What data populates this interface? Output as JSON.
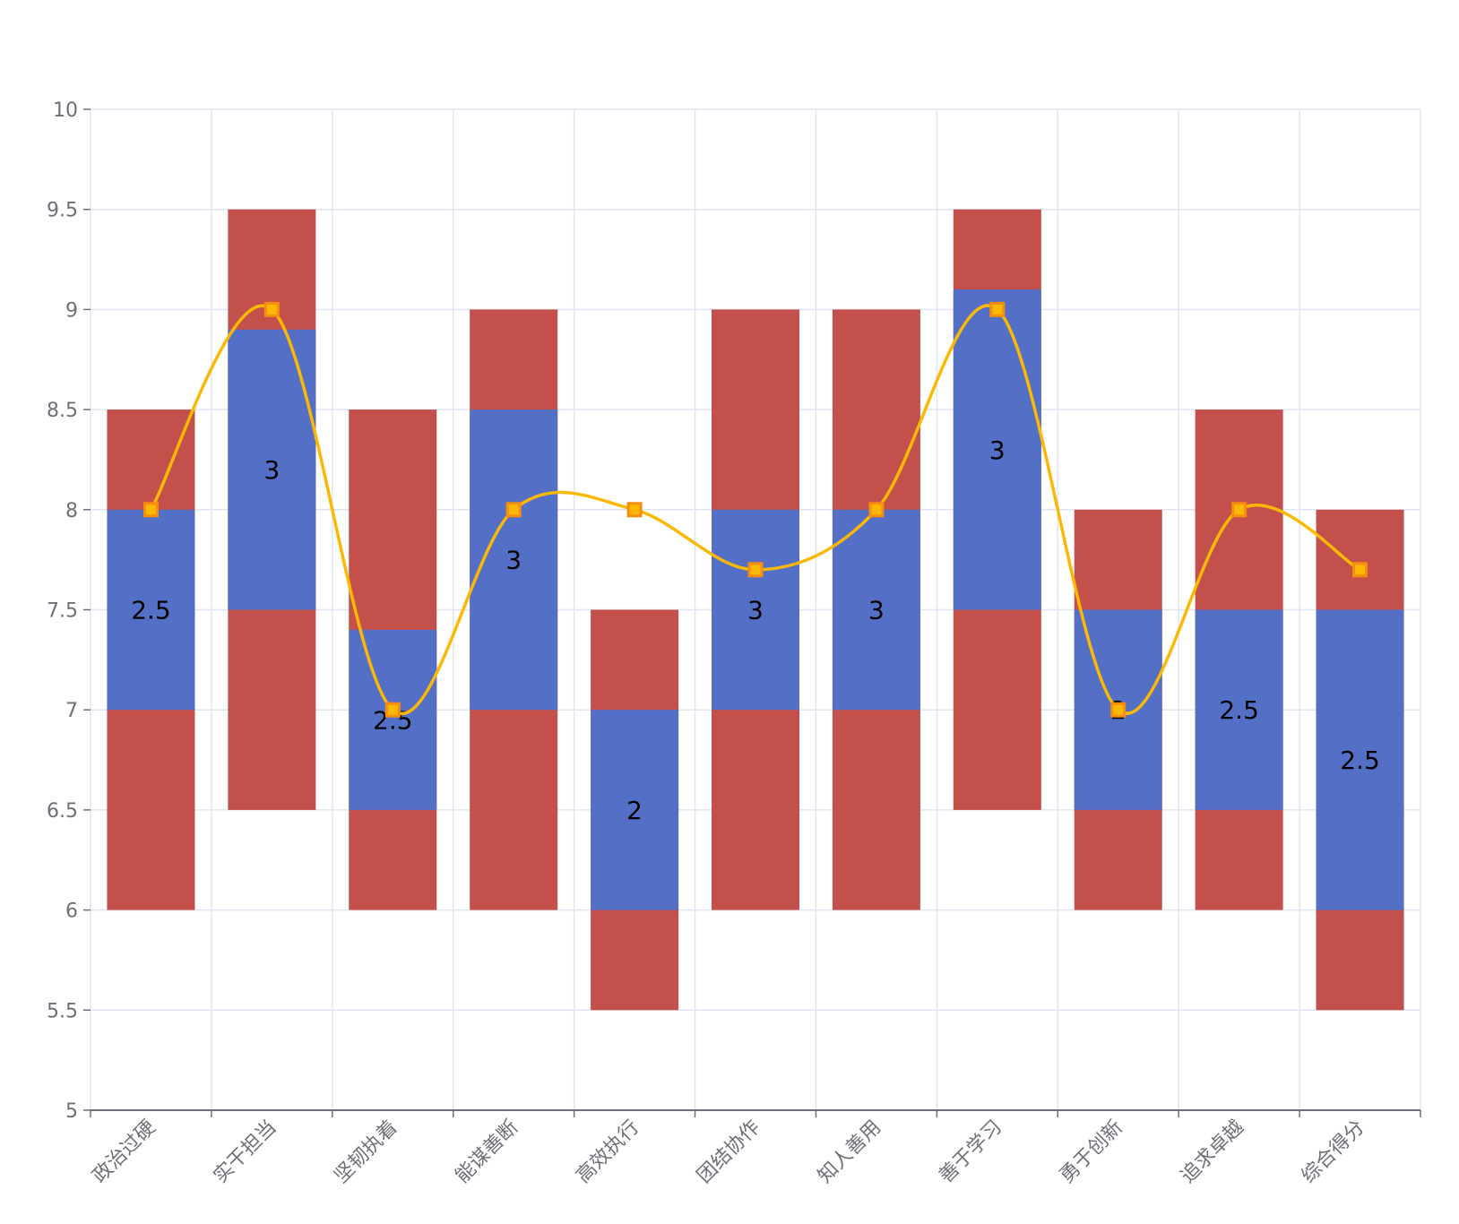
{
  "chart_data": {
    "type": "bar",
    "categories": [
      "政治过硬",
      "实干担当",
      "坚韧执着",
      "能谋善断",
      "高效执行",
      "团结协作",
      "知人善用",
      "善于学习",
      "勇于创新",
      "追求卓越",
      "综合得分"
    ],
    "range_low": [
      6,
      6.5,
      6,
      6,
      5.5,
      6,
      6,
      6.5,
      6,
      6,
      5.5
    ],
    "range_high": [
      8.5,
      9.5,
      8.5,
      9,
      7.5,
      9,
      9,
      9.5,
      8,
      8.5,
      8
    ],
    "band_low": [
      7,
      7.5,
      6.5,
      7,
      6,
      7,
      7,
      7.5,
      6.5,
      6.5,
      6
    ],
    "band_high": [
      8,
      8.9,
      7.4,
      8.5,
      7,
      8,
      8,
      9.1,
      7.5,
      7.5,
      7.5
    ],
    "band_labels": [
      "2.5",
      "3",
      "2.5",
      "3",
      "2",
      "3",
      "3",
      "3",
      "2",
      "2.5",
      "2.5"
    ],
    "line_values": [
      8,
      9,
      7,
      8,
      8,
      7.7,
      8,
      9,
      7,
      8,
      7.7
    ],
    "ylim": [
      5,
      10
    ],
    "yticks": [
      "5",
      "5.5",
      "6",
      "6.5",
      "7",
      "7.5",
      "8",
      "8.5",
      "9",
      "9.5",
      "10"
    ],
    "grid": true,
    "colors": {
      "range": "#c4504b",
      "band": "#5470c6",
      "line": "#fbb804",
      "marker_fill": "#fbb804",
      "marker_stroke": "#f68d0c",
      "grid": "#e0e6f1",
      "axis": "#6e7079"
    }
  }
}
